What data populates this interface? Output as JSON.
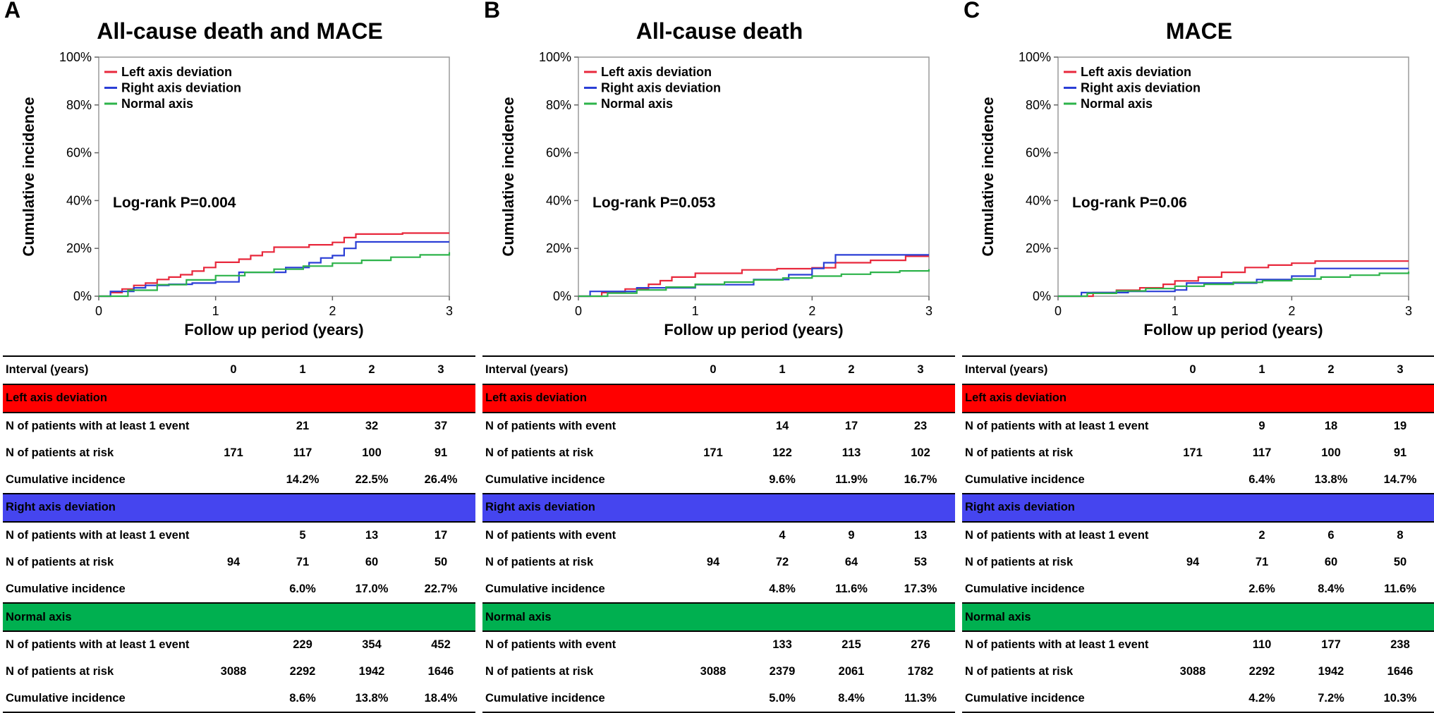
{
  "colors": {
    "left": "#e8283c",
    "right": "#2b3fd6",
    "normal": "#2db34a"
  },
  "panels": [
    {
      "letter": "A",
      "title": "All-cause death and MACE",
      "log_rank": "Log-rank P=0.004",
      "table": {
        "header": [
          "Interval (years)",
          "0",
          "1",
          "2",
          "3"
        ],
        "groups": [
          {
            "name": "Left axis deviation",
            "rows": [
              [
                "N of patients with at least 1 event",
                "",
                "21",
                "32",
                "37"
              ],
              [
                "N of patients at risk",
                "171",
                "117",
                "100",
                "91"
              ],
              [
                "Cumulative incidence",
                "",
                "14.2%",
                "22.5%",
                "26.4%"
              ]
            ]
          },
          {
            "name": "Right axis deviation",
            "rows": [
              [
                "N of patients with at least 1 event",
                "",
                "5",
                "13",
                "17"
              ],
              [
                "N of patients at risk",
                "94",
                "71",
                "60",
                "50"
              ],
              [
                "Cumulative incidence",
                "",
                "6.0%",
                "17.0%",
                "22.7%"
              ]
            ]
          },
          {
            "name": "Normal axis",
            "rows": [
              [
                "N of patients with at least 1 event",
                "",
                "229",
                "354",
                "452"
              ],
              [
                "N of patients at risk",
                "3088",
                "2292",
                "1942",
                "1646"
              ],
              [
                "Cumulative incidence",
                "",
                "8.6%",
                "13.8%",
                "18.4%"
              ]
            ]
          }
        ]
      }
    },
    {
      "letter": "B",
      "title": "All-cause death",
      "log_rank": "Log-rank P=0.053",
      "table": {
        "header": [
          "Interval (years)",
          "0",
          "1",
          "2",
          "3"
        ],
        "groups": [
          {
            "name": "Left axis deviation",
            "rows": [
              [
                "N of patients with event",
                "",
                "14",
                "17",
                "23"
              ],
              [
                "N of patients at risk",
                "171",
                "122",
                "113",
                "102"
              ],
              [
                "Cumulative incidence",
                "",
                "9.6%",
                "11.9%",
                "16.7%"
              ]
            ]
          },
          {
            "name": "Right axis deviation",
            "rows": [
              [
                "N of patients with event",
                "",
                "4",
                "9",
                "13"
              ],
              [
                "N of patients at risk",
                "94",
                "72",
                "64",
                "53"
              ],
              [
                "Cumulative incidence",
                "",
                "4.8%",
                "11.6%",
                "17.3%"
              ]
            ]
          },
          {
            "name": "Normal axis",
            "rows": [
              [
                "N of patients with event",
                "",
                "133",
                "215",
                "276"
              ],
              [
                "N of patients at risk",
                "3088",
                "2379",
                "2061",
                "1782"
              ],
              [
                "Cumulative incidence",
                "",
                "5.0%",
                "8.4%",
                "11.3%"
              ]
            ]
          }
        ]
      }
    },
    {
      "letter": "C",
      "title": "MACE",
      "log_rank": "Log-rank P=0.06",
      "table": {
        "header": [
          "Interval (years)",
          "0",
          "1",
          "2",
          "3"
        ],
        "groups": [
          {
            "name": "Left axis deviation",
            "rows": [
              [
                "N of patients with at least 1 event",
                "",
                "9",
                "18",
                "19"
              ],
              [
                "N of patients at risk",
                "171",
                "117",
                "100",
                "91"
              ],
              [
                "Cumulative incidence",
                "",
                "6.4%",
                "13.8%",
                "14.7%"
              ]
            ]
          },
          {
            "name": "Right axis deviation",
            "rows": [
              [
                "N of patients with at least 1 event",
                "",
                "2",
                "6",
                "8"
              ],
              [
                "N of patients at risk",
                "94",
                "71",
                "60",
                "50"
              ],
              [
                "Cumulative incidence",
                "",
                "2.6%",
                "8.4%",
                "11.6%"
              ]
            ]
          },
          {
            "name": "Normal axis",
            "rows": [
              [
                "N of patients with at least 1 event",
                "",
                "110",
                "177",
                "238"
              ],
              [
                "N of patients at risk",
                "3088",
                "2292",
                "1942",
                "1646"
              ],
              [
                "Cumulative incidence",
                "",
                "4.2%",
                "7.2%",
                "10.3%"
              ]
            ]
          }
        ]
      }
    }
  ],
  "chart_data": [
    {
      "type": "line",
      "title": "All-cause death and MACE",
      "xlabel": "Follow up period (years)",
      "ylabel": "Cumulative incidence",
      "xlim": [
        0,
        3
      ],
      "ylim": [
        0,
        100
      ],
      "x_ticks": [
        "0",
        "1",
        "2",
        "3"
      ],
      "y_ticks": [
        "0%",
        "20%",
        "40%",
        "60%",
        "80%",
        "100%"
      ],
      "legend_position": "top-left",
      "annotation": "Log-rank P=0.004",
      "series": [
        {
          "name": "Left axis deviation",
          "color": "#e8283c",
          "x": [
            0,
            0.1,
            0.2,
            0.3,
            0.4,
            0.5,
            0.6,
            0.7,
            0.8,
            0.9,
            1.0,
            1.2,
            1.3,
            1.4,
            1.5,
            1.6,
            1.8,
            1.9,
            2.0,
            2.1,
            2.2,
            2.5,
            2.6,
            3.0
          ],
          "y": [
            0,
            1.5,
            3,
            4.5,
            5.5,
            7,
            8,
            9,
            10.5,
            12,
            14.2,
            15.5,
            17,
            18.5,
            20.5,
            20.5,
            21.5,
            21.5,
            22.5,
            24.5,
            26,
            26,
            26.4,
            26.4
          ]
        },
        {
          "name": "Right axis deviation",
          "color": "#2b3fd6",
          "x": [
            0,
            0.1,
            0.2,
            0.3,
            0.4,
            0.6,
            0.8,
            1.0,
            1.15,
            1.2,
            1.5,
            1.6,
            1.8,
            1.9,
            2.0,
            2.1,
            2.2,
            3.0
          ],
          "y": [
            0,
            2,
            2,
            3.5,
            4.5,
            5,
            5.5,
            6.0,
            6.0,
            10,
            10,
            12,
            14,
            16,
            17.0,
            20,
            22.7,
            22.7
          ]
        },
        {
          "name": "Normal axis",
          "color": "#2db34a",
          "x": [
            0,
            0.25,
            0.5,
            0.75,
            1.0,
            1.25,
            1.5,
            1.75,
            2.0,
            2.25,
            2.5,
            2.75,
            3.0
          ],
          "y": [
            0,
            2.5,
            4.8,
            6.8,
            8.6,
            10,
            11.3,
            12.6,
            13.8,
            15,
            16.3,
            17.3,
            18.4
          ]
        }
      ]
    },
    {
      "type": "line",
      "title": "All-cause death",
      "xlabel": "Follow up period (years)",
      "ylabel": "Cumulative incidence",
      "xlim": [
        0,
        3
      ],
      "ylim": [
        0,
        100
      ],
      "x_ticks": [
        "0",
        "1",
        "2",
        "3"
      ],
      "y_ticks": [
        "0%",
        "20%",
        "40%",
        "60%",
        "80%",
        "100%"
      ],
      "legend_position": "top-left",
      "annotation": "Log-rank P=0.053",
      "series": [
        {
          "name": "Left axis deviation",
          "color": "#e8283c",
          "x": [
            0,
            0.2,
            0.4,
            0.6,
            0.7,
            0.8,
            1.0,
            1.4,
            1.7,
            2.0,
            2.2,
            2.5,
            2.8,
            3.0
          ],
          "y": [
            0,
            1.5,
            3,
            5,
            6.5,
            8,
            9.6,
            11,
            11.5,
            11.9,
            14,
            15,
            16.7,
            16.7
          ]
        },
        {
          "name": "Right axis deviation",
          "color": "#2b3fd6",
          "x": [
            0,
            0.1,
            0.5,
            1.0,
            1.5,
            1.8,
            2.0,
            2.1,
            2.2,
            3.0
          ],
          "y": [
            0,
            2,
            3.5,
            4.8,
            7,
            9,
            11.6,
            14,
            17.3,
            17.3
          ]
        },
        {
          "name": "Normal axis",
          "color": "#2db34a",
          "x": [
            0,
            0.25,
            0.5,
            0.75,
            1.0,
            1.25,
            1.5,
            1.75,
            2.0,
            2.25,
            2.5,
            2.75,
            3.0
          ],
          "y": [
            0,
            1.3,
            2.6,
            3.8,
            5.0,
            5.9,
            6.8,
            7.6,
            8.4,
            9.2,
            10,
            10.6,
            11.3
          ]
        }
      ]
    },
    {
      "type": "line",
      "title": "MACE",
      "xlabel": "Follow up period (years)",
      "ylabel": "Cumulative incidence",
      "xlim": [
        0,
        3
      ],
      "ylim": [
        0,
        100
      ],
      "x_ticks": [
        "0",
        "1",
        "2",
        "3"
      ],
      "y_ticks": [
        "0%",
        "20%",
        "40%",
        "60%",
        "80%",
        "100%"
      ],
      "legend_position": "top-left",
      "annotation": "Log-rank P=0.06",
      "series": [
        {
          "name": "Left axis deviation",
          "color": "#e8283c",
          "x": [
            0,
            0.3,
            0.5,
            0.7,
            0.9,
            1.0,
            1.2,
            1.4,
            1.6,
            1.8,
            2.0,
            2.2,
            3.0
          ],
          "y": [
            0,
            1.5,
            2.5,
            3.5,
            5,
            6.4,
            8,
            10,
            12,
            13,
            13.8,
            14.7,
            14.7
          ]
        },
        {
          "name": "Right axis deviation",
          "color": "#2b3fd6",
          "x": [
            0,
            0.2,
            0.6,
            1.0,
            1.1,
            1.7,
            2.0,
            2.2,
            3.0
          ],
          "y": [
            0,
            1.5,
            2,
            2.6,
            5.5,
            7,
            8.4,
            11.6,
            11.6
          ]
        },
        {
          "name": "Normal axis",
          "color": "#2db34a",
          "x": [
            0,
            0.25,
            0.5,
            0.75,
            1.0,
            1.25,
            1.5,
            1.75,
            2.0,
            2.25,
            2.5,
            2.75,
            3.0
          ],
          "y": [
            0,
            1.2,
            2.2,
            3.2,
            4.2,
            5.0,
            5.8,
            6.5,
            7.2,
            8,
            8.8,
            9.6,
            10.3
          ]
        }
      ]
    }
  ]
}
